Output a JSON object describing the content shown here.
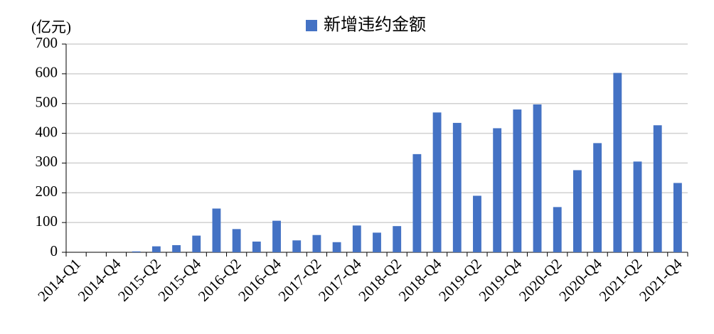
{
  "chart_data": {
    "type": "bar",
    "legend_title": "新增违约金额",
    "y_axis_label": "(亿元)",
    "categories": [
      "2014-Q1",
      null,
      "2014-Q4",
      null,
      "2015-Q2",
      null,
      "2015-Q4",
      null,
      "2016-Q2",
      null,
      "2016-Q4",
      null,
      "2017-Q2",
      null,
      "2017-Q4",
      null,
      "2018-Q2",
      null,
      "2018-Q4",
      null,
      "2019-Q2",
      null,
      "2019-Q4",
      null,
      "2020-Q2",
      null,
      "2020-Q4",
      null,
      "2021-Q2",
      null,
      "2021-Q4"
    ],
    "series": [
      {
        "name": "新增违约金额",
        "color": "#4472c4",
        "values": [
          0,
          0,
          0,
          3,
          20,
          24,
          56,
          147,
          78,
          36,
          106,
          40,
          58,
          34,
          90,
          66,
          88,
          330,
          470,
          435,
          190,
          417,
          480,
          497,
          152,
          276,
          367,
          603,
          305,
          427,
          233
        ]
      }
    ],
    "ylim": [
      0,
      700
    ],
    "yticks": [
      0,
      100,
      200,
      300,
      400,
      500,
      600,
      700
    ],
    "grid": true,
    "legend": "top"
  }
}
